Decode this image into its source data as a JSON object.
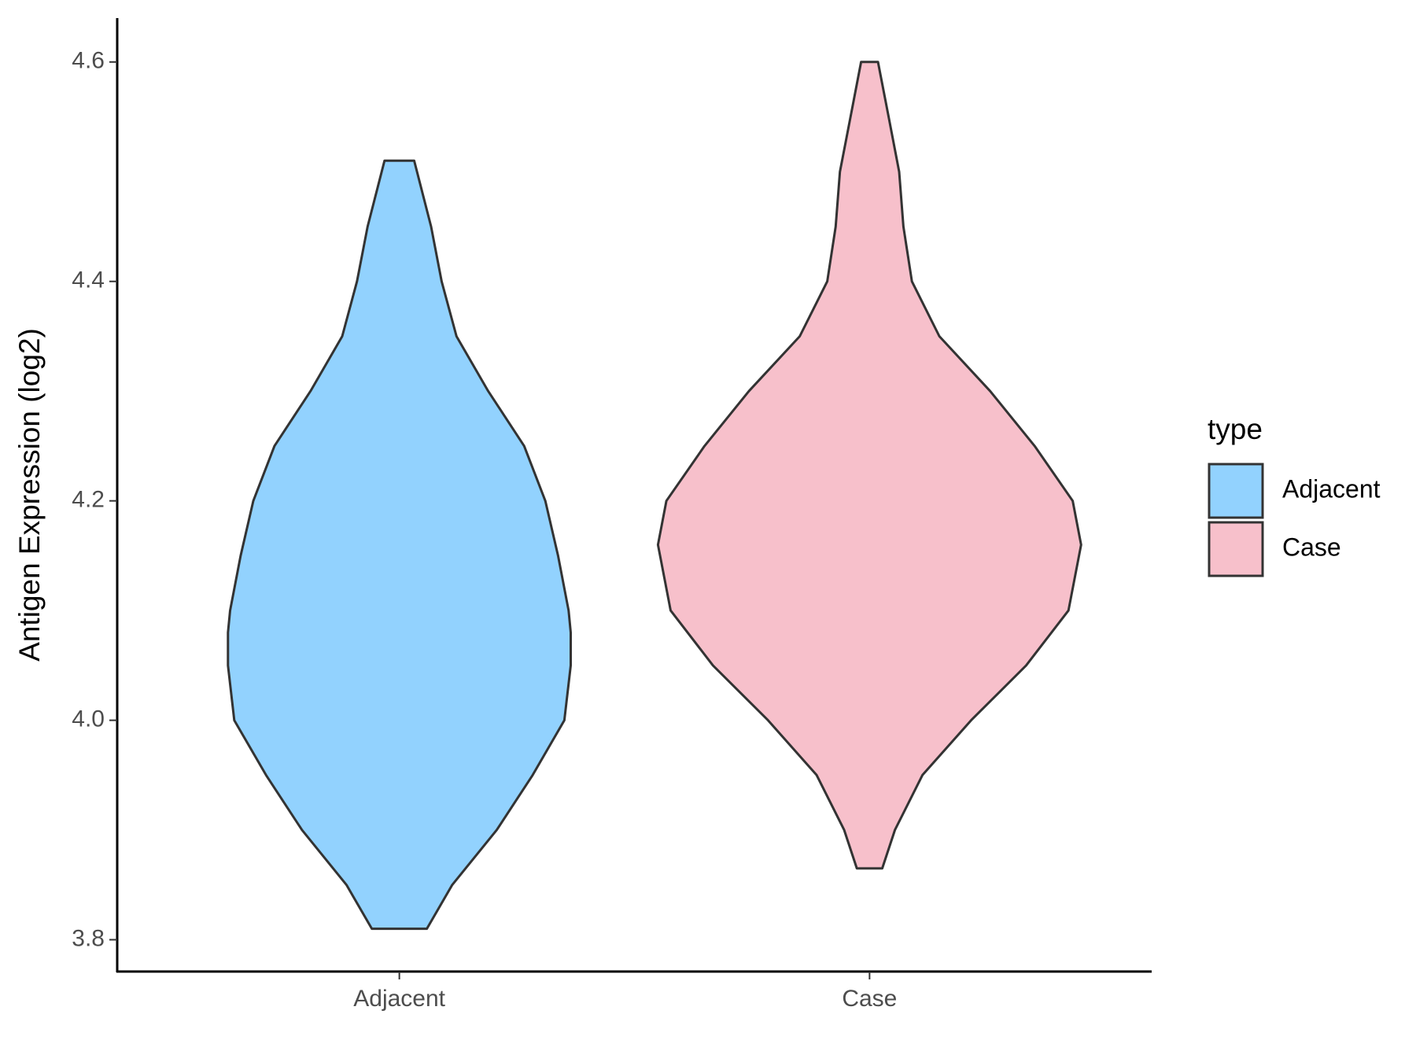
{
  "chart_data": {
    "type": "violin",
    "y_label": "Antigen Expression (log2)",
    "categories": [
      "Adjacent",
      "Case"
    ],
    "ylim": [
      3.771,
      4.64
    ],
    "yticks": [
      {
        "value": 3.8,
        "label": "3.8"
      },
      {
        "value": 4.0,
        "label": "4.0"
      },
      {
        "value": 4.2,
        "label": "4.2"
      },
      {
        "value": 4.4,
        "label": "4.4"
      },
      {
        "value": 4.6,
        "label": "4.6"
      }
    ],
    "legend_title": "type",
    "legend_position": "right",
    "series": [
      {
        "name": "Adjacent",
        "color": "#92d2fe",
        "y": [
          3.81,
          3.85,
          3.9,
          3.95,
          4.0,
          4.05,
          4.08,
          4.1,
          4.15,
          4.2,
          4.25,
          4.3,
          4.35,
          4.4,
          4.45,
          4.51
        ],
        "density": [
          0.13,
          0.25,
          0.46,
          0.63,
          0.78,
          0.81,
          0.81,
          0.8,
          0.75,
          0.69,
          0.59,
          0.42,
          0.27,
          0.2,
          0.15,
          0.07
        ]
      },
      {
        "name": "Case",
        "color": "#f7c0cb",
        "y": [
          3.865,
          3.9,
          3.95,
          4.0,
          4.05,
          4.1,
          4.16,
          4.2,
          4.25,
          4.3,
          4.35,
          4.4,
          4.45,
          4.5,
          4.55,
          4.6
        ],
        "density": [
          0.06,
          0.12,
          0.25,
          0.48,
          0.74,
          0.94,
          1,
          0.96,
          0.78,
          0.57,
          0.33,
          0.2,
          0.16,
          0.14,
          0.09,
          0.04
        ]
      }
    ]
  }
}
